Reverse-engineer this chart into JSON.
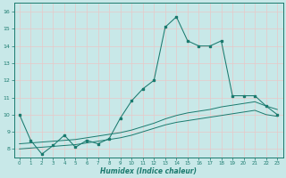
{
  "xlabel": "Humidex (Indice chaleur)",
  "ylabel": "",
  "bg_color": "#c8e8e8",
  "grid_color": "#e8c8c8",
  "line_color": "#1a7a6e",
  "xlim": [
    -0.5,
    23.5
  ],
  "ylim": [
    7.5,
    16.5
  ],
  "xticks": [
    0,
    1,
    2,
    3,
    4,
    5,
    6,
    7,
    8,
    9,
    10,
    11,
    12,
    13,
    14,
    15,
    16,
    17,
    18,
    19,
    20,
    21,
    22,
    23
  ],
  "yticks": [
    8,
    9,
    10,
    11,
    12,
    13,
    14,
    15,
    16
  ],
  "series1_x": [
    0,
    1,
    2,
    3,
    4,
    5,
    6,
    7,
    8,
    9,
    10,
    11,
    12,
    13,
    14,
    15,
    16,
    17,
    18,
    19,
    20,
    21,
    22,
    23
  ],
  "series1_y": [
    10.0,
    8.5,
    7.7,
    8.2,
    8.8,
    8.1,
    8.5,
    8.3,
    8.6,
    9.8,
    10.8,
    11.5,
    12.0,
    15.1,
    15.7,
    14.3,
    14.0,
    14.0,
    14.3,
    11.1,
    11.1,
    11.1,
    10.5,
    10.0
  ],
  "series2_x": [
    0,
    1,
    2,
    3,
    4,
    5,
    6,
    7,
    8,
    9,
    10,
    11,
    12,
    13,
    14,
    15,
    16,
    17,
    18,
    19,
    20,
    21,
    22,
    23
  ],
  "series2_y": [
    8.0,
    8.05,
    8.1,
    8.15,
    8.2,
    8.25,
    8.35,
    8.45,
    8.55,
    8.65,
    8.8,
    9.0,
    9.2,
    9.4,
    9.55,
    9.65,
    9.75,
    9.85,
    9.95,
    10.05,
    10.15,
    10.25,
    10.0,
    9.9
  ],
  "series3_x": [
    0,
    1,
    2,
    3,
    4,
    5,
    6,
    7,
    8,
    9,
    10,
    11,
    12,
    13,
    14,
    15,
    16,
    17,
    18,
    19,
    20,
    21,
    22,
    23
  ],
  "series3_y": [
    8.3,
    8.35,
    8.4,
    8.45,
    8.5,
    8.55,
    8.65,
    8.75,
    8.85,
    8.95,
    9.1,
    9.3,
    9.5,
    9.75,
    9.95,
    10.1,
    10.2,
    10.3,
    10.45,
    10.55,
    10.65,
    10.75,
    10.5,
    10.3
  ]
}
